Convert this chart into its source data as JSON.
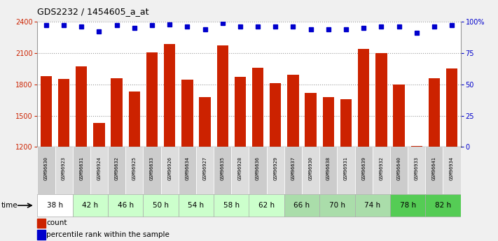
{
  "title": "GDS2232 / 1454605_a_at",
  "gsm_labels": [
    "GSM96630",
    "GSM96923",
    "GSM96631",
    "GSM96924",
    "GSM96632",
    "GSM96925",
    "GSM96633",
    "GSM96926",
    "GSM96634",
    "GSM96927",
    "GSM96635",
    "GSM96928",
    "GSM96636",
    "GSM96929",
    "GSM96637",
    "GSM96930",
    "GSM96638",
    "GSM96931",
    "GSM96639",
    "GSM96932",
    "GSM96640",
    "GSM96933",
    "GSM96641",
    "GSM96934"
  ],
  "bar_values": [
    1880,
    1855,
    1970,
    1430,
    1860,
    1730,
    2105,
    2185,
    1845,
    1680,
    2175,
    1875,
    1960,
    1810,
    1895,
    1720,
    1680,
    1660,
    2140,
    2100,
    1795,
    1210,
    1860,
    1950
  ],
  "percentile_values": [
    97,
    97,
    96,
    92,
    97,
    95,
    97,
    98,
    96,
    94,
    99,
    96,
    96,
    96,
    96,
    94,
    94,
    94,
    95,
    96,
    96,
    91,
    96,
    97
  ],
  "time_groups": [
    {
      "label": "38 h",
      "indices": [
        0,
        1
      ],
      "color": "#ffffff"
    },
    {
      "label": "42 h",
      "indices": [
        2,
        3
      ],
      "color": "#ccffcc"
    },
    {
      "label": "46 h",
      "indices": [
        4,
        5
      ],
      "color": "#ccffcc"
    },
    {
      "label": "50 h",
      "indices": [
        6,
        7
      ],
      "color": "#ccffcc"
    },
    {
      "label": "54 h",
      "indices": [
        8,
        9
      ],
      "color": "#ccffcc"
    },
    {
      "label": "58 h",
      "indices": [
        10,
        11
      ],
      "color": "#ccffcc"
    },
    {
      "label": "62 h",
      "indices": [
        12,
        13
      ],
      "color": "#ccffcc"
    },
    {
      "label": "66 h",
      "indices": [
        14,
        15
      ],
      "color": "#aaddaa"
    },
    {
      "label": "70 h",
      "indices": [
        16,
        17
      ],
      "color": "#aaddaa"
    },
    {
      "label": "74 h",
      "indices": [
        18,
        19
      ],
      "color": "#aaddaa"
    },
    {
      "label": "78 h",
      "indices": [
        20,
        21
      ],
      "color": "#55cc55"
    },
    {
      "label": "82 h",
      "indices": [
        22,
        23
      ],
      "color": "#55cc55"
    }
  ],
  "ylim_left": [
    1200,
    2400
  ],
  "ylim_right": [
    0,
    100
  ],
  "yticks_left": [
    1200,
    1500,
    1800,
    2100,
    2400
  ],
  "yticks_right": [
    0,
    25,
    50,
    75,
    100
  ],
  "bar_color": "#cc2200",
  "dot_color": "#0000cc",
  "bar_width": 0.65,
  "fig_bg_color": "#f0f0f0"
}
